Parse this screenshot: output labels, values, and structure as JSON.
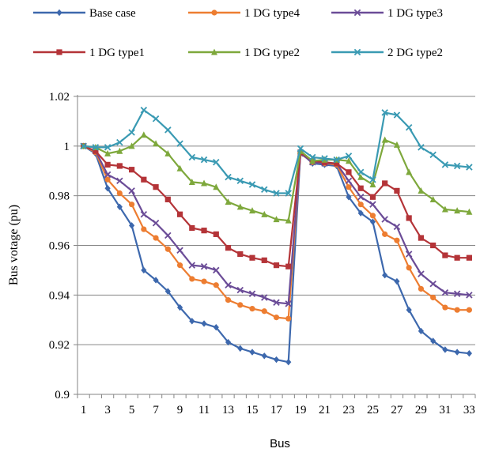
{
  "chart_data": {
    "type": "line",
    "title": "",
    "xlabel": "Bus",
    "ylabel": "Bus votage (pu)",
    "ylim": [
      0.9,
      1.02
    ],
    "yticks": [
      "0.9",
      "0.92",
      "0.94",
      "0.96",
      "0.98",
      "1",
      "1.02"
    ],
    "xticks": [
      "1",
      "3",
      "5",
      "7",
      "9",
      "11",
      "13",
      "15",
      "17",
      "19",
      "21",
      "23",
      "25",
      "27",
      "29",
      "31",
      "33"
    ],
    "grid": "horizontal",
    "legend_position": "top",
    "x": [
      1,
      2,
      3,
      4,
      5,
      6,
      7,
      8,
      9,
      10,
      11,
      12,
      13,
      14,
      15,
      16,
      17,
      18,
      19,
      20,
      21,
      22,
      23,
      24,
      25,
      26,
      27,
      28,
      29,
      30,
      31,
      32,
      33
    ],
    "series": [
      {
        "name": "Base case",
        "color": "#3d68ad",
        "marker": "diamond",
        "values": [
          1.0,
          0.997,
          0.983,
          0.9755,
          0.968,
          0.95,
          0.946,
          0.9415,
          0.935,
          0.9295,
          0.9285,
          0.927,
          0.921,
          0.9185,
          0.917,
          0.9155,
          0.914,
          0.913,
          0.9975,
          0.993,
          0.9925,
          0.992,
          0.9795,
          0.973,
          0.9695,
          0.948,
          0.9455,
          0.934,
          0.9255,
          0.9215,
          0.918,
          0.917,
          0.9165
        ]
      },
      {
        "name": "1 DG type4",
        "color": "#ed7d31",
        "marker": "circle",
        "values": [
          1.0,
          0.9975,
          0.9865,
          0.981,
          0.9765,
          0.9665,
          0.963,
          0.9585,
          0.952,
          0.9465,
          0.9455,
          0.944,
          0.938,
          0.936,
          0.9345,
          0.9335,
          0.931,
          0.9305,
          0.997,
          0.9935,
          0.993,
          0.9925,
          0.9835,
          0.9765,
          0.972,
          0.9645,
          0.962,
          0.951,
          0.9425,
          0.939,
          0.935,
          0.934,
          0.934
        ]
      },
      {
        "name": "1 DG type3",
        "color": "#6b4c97",
        "marker": "x",
        "values": [
          1.0,
          0.998,
          0.9885,
          0.986,
          0.982,
          0.9725,
          0.969,
          0.964,
          0.958,
          0.952,
          0.9515,
          0.95,
          0.944,
          0.942,
          0.9405,
          0.939,
          0.937,
          0.9365,
          0.997,
          0.9935,
          0.993,
          0.993,
          0.986,
          0.9795,
          0.9765,
          0.9705,
          0.9675,
          0.9565,
          0.9485,
          0.9445,
          0.941,
          0.9405,
          0.94
        ]
      },
      {
        "name": "1 DG type1",
        "color": "#b43438",
        "marker": "square",
        "values": [
          1.0,
          0.998,
          0.9925,
          0.992,
          0.9905,
          0.9865,
          0.9835,
          0.9785,
          0.9725,
          0.967,
          0.966,
          0.9645,
          0.959,
          0.9565,
          0.955,
          0.954,
          0.952,
          0.9515,
          0.9975,
          0.994,
          0.9935,
          0.993,
          0.9895,
          0.983,
          0.9795,
          0.985,
          0.982,
          0.971,
          0.963,
          0.96,
          0.956,
          0.955,
          0.955
        ]
      },
      {
        "name": "1 DG type2",
        "color": "#7ea83c",
        "marker": "triangle",
        "values": [
          1.0,
          0.9995,
          0.997,
          0.998,
          1.0,
          1.0045,
          1.001,
          0.997,
          0.991,
          0.9855,
          0.985,
          0.9835,
          0.9775,
          0.9755,
          0.974,
          0.9725,
          0.9705,
          0.97,
          0.998,
          0.994,
          0.9945,
          0.9945,
          0.994,
          0.9875,
          0.9845,
          1.0025,
          1.0005,
          0.9895,
          0.982,
          0.9785,
          0.9745,
          0.974,
          0.9735
        ]
      },
      {
        "name": "2 DG type2",
        "color": "#3a9ab3",
        "marker": "x",
        "values": [
          1.0,
          0.9995,
          0.9995,
          1.0015,
          1.0055,
          1.0145,
          1.011,
          1.0065,
          1.001,
          0.9955,
          0.9945,
          0.9935,
          0.9875,
          0.986,
          0.9845,
          0.9825,
          0.981,
          0.981,
          0.999,
          0.9955,
          0.995,
          0.9945,
          0.996,
          0.9895,
          0.9865,
          1.0135,
          1.0125,
          1.0075,
          0.9995,
          0.9965,
          0.9925,
          0.992,
          0.9915
        ]
      }
    ]
  }
}
